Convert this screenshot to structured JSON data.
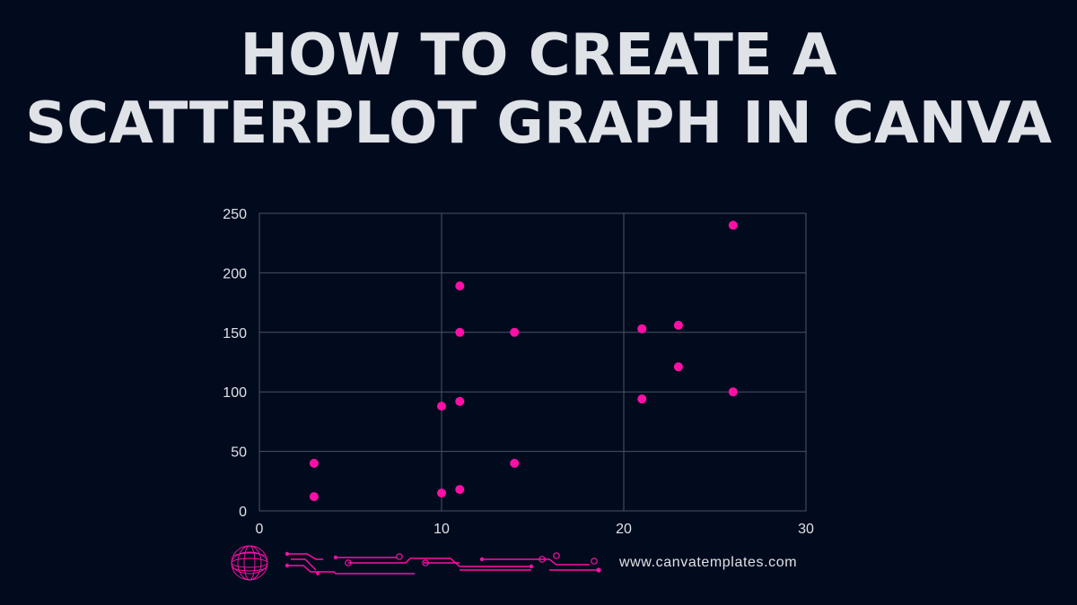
{
  "header": {
    "title_line1": "HOW TO CREATE A",
    "title_line2": "SCATTERPLOT GRAPH IN CANVA"
  },
  "colors": {
    "background": "#020b1e",
    "text": "#dfe2e6",
    "point": "#ff0fa6",
    "grid": "#4a5366"
  },
  "chart_data": {
    "type": "scatter",
    "title": "",
    "xlabel": "",
    "ylabel": "",
    "xlim": [
      0,
      30
    ],
    "ylim": [
      0,
      250
    ],
    "x_ticks": [
      "0",
      "10",
      "20",
      "30"
    ],
    "y_ticks": [
      "0",
      "50",
      "100",
      "150",
      "200",
      "250"
    ],
    "grid": true,
    "points": [
      {
        "x": 3,
        "y": 40
      },
      {
        "x": 3,
        "y": 12
      },
      {
        "x": 10,
        "y": 88
      },
      {
        "x": 10,
        "y": 15
      },
      {
        "x": 11,
        "y": 189
      },
      {
        "x": 11,
        "y": 150
      },
      {
        "x": 11,
        "y": 92
      },
      {
        "x": 11,
        "y": 18
      },
      {
        "x": 14,
        "y": 150
      },
      {
        "x": 14,
        "y": 40
      },
      {
        "x": 21,
        "y": 153
      },
      {
        "x": 21,
        "y": 94
      },
      {
        "x": 23,
        "y": 156
      },
      {
        "x": 23,
        "y": 121
      },
      {
        "x": 26,
        "y": 240
      },
      {
        "x": 26,
        "y": 100
      }
    ]
  },
  "footer": {
    "logo_icon": "globe-icon",
    "decoration_icon": "circuit-lines-icon",
    "url": "www.canvatemplates.com"
  }
}
